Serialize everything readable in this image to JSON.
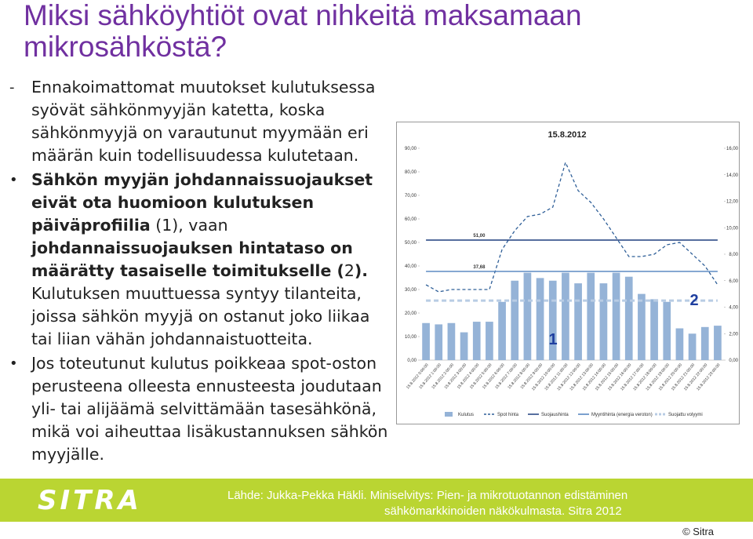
{
  "title": "Miksi sähköyhtiöt ovat nihkeitä maksamaan mikrosähköstä?",
  "bullets": [
    {
      "marker": "-",
      "runs": [
        {
          "text": "Ennakoimattomat muutokset kulutuksessa syövät sähkönmyyjän katetta, koska sähkönmyyjä on varautunut myymään eri määrän kuin todellisuudessa kulutetaan.",
          "bold": false
        }
      ]
    },
    {
      "marker": "•",
      "runs": [
        {
          "text": "Sähkön myyjän johdannaissuojaukset eivät ota huomioon kulutuksen päiväprofiilia",
          "bold": true
        },
        {
          "text": " (1), vaan ",
          "bold": false
        },
        {
          "text": "johdannaissuojauksen hintataso on määrätty tasaiselle toimitukselle (",
          "bold": true
        },
        {
          "text": "2",
          "bold": false
        },
        {
          "text": ").",
          "bold": true
        },
        {
          "text": " Kulutuksen muuttuessa syntyy tilanteita, joissa sähkön myyjä on ostanut joko liikaa tai liian vähän johdannaistuotteita.",
          "bold": false
        }
      ]
    },
    {
      "marker": "•",
      "runs": [
        {
          "text": "Jos toteutunut kulutus poikkeaa spot-oston perusteena olleesta ennusteesta joudutaan yli- tai alijäämä selvittämään tasesähkönä, mikä voi aiheuttaa lisäkustannuksen sähkön myyjälle.",
          "bold": false
        }
      ]
    }
  ],
  "footer": {
    "logo": "SITRA",
    "source": [
      "Lähde: Jukka-Pekka Häkli. Miniselvitys: Pien- ja mikrotuotannon edistäminen",
      "sähkömarkkinoiden näkökulmasta. Sitra 2012"
    ],
    "copyright": "© Sitra"
  },
  "chart_data": {
    "type": "bar-line",
    "title": "15.8.2012",
    "categories": [
      "15.8.2012 0:00:00",
      "15.8.2012 1:00:00",
      "15.8.2012 2:00:00",
      "15.8.2012 3:00:00",
      "15.8.2012 4:00:00",
      "15.8.2012 5:00:00",
      "15.8.2012 6:00:00",
      "15.8.2012 7:00:00",
      "15.8.2012 8:00:00",
      "15.8.2012 9:00:00",
      "15.8.2012 10:00:00",
      "15.8.2012 11:00:00",
      "15.8.2012 12:00:00",
      "15.8.2012 13:00:00",
      "15.8.2012 14:00:00",
      "15.8.2012 15:00:00",
      "15.8.2012 16:00:00",
      "15.8.2012 17:00:00",
      "15.8.2012 18:00:00",
      "15.8.2012 19:00:00",
      "15.8.2012 20:00:00",
      "15.8.2012 21:00:00",
      "15.8.2012 22:00:00",
      "15.8.2012 23:00:00"
    ],
    "series": [
      {
        "name": "Kulutus",
        "kind": "bar",
        "axis": "y2",
        "color": "#95b3d7",
        "values": [
          2.8,
          2.7,
          2.8,
          2.1,
          2.9,
          2.9,
          4.4,
          6.0,
          6.6,
          6.2,
          6.0,
          6.6,
          5.8,
          6.6,
          5.8,
          6.6,
          6.3,
          5.0,
          4.6,
          4.4,
          2.4,
          2.0,
          2.5,
          2.6
        ]
      },
      {
        "name": "Spot hinta",
        "kind": "dash",
        "color": "#2f5f98",
        "values": [
          32,
          29,
          30,
          30,
          30,
          30,
          47,
          55,
          61,
          62,
          65,
          84,
          72,
          67,
          60,
          52,
          44,
          44,
          45,
          49,
          50,
          45,
          40,
          32
        ]
      },
      {
        "name": "Suojaushinta",
        "kind": "line",
        "color": "#1f3f7f",
        "values": [
          51,
          51,
          51,
          51,
          51,
          51,
          51,
          51,
          51,
          51,
          51,
          51,
          51,
          51,
          51,
          51,
          51,
          51,
          51,
          51,
          51,
          51,
          51,
          51
        ],
        "label_values": [
          51
        ],
        "value_labels": [
          "51,00"
        ]
      },
      {
        "name": "Myyntihinta (energia veroton)",
        "kind": "line",
        "color": "#4f81bd",
        "values": [
          37.68,
          37.68,
          37.68,
          37.68,
          37.68,
          37.68,
          37.68,
          37.68,
          37.68,
          37.68,
          37.68,
          37.68,
          37.68,
          37.68,
          37.68,
          37.68,
          37.68,
          37.68,
          37.68,
          37.68,
          37.68,
          37.68,
          37.68,
          37.68
        ],
        "label_values": [
          37.68
        ],
        "value_labels": [
          "37,68"
        ]
      },
      {
        "name": "Suojattu volyymi",
        "kind": "thickdash",
        "axis": "y2",
        "color": "#b8cce4",
        "values": [
          4.5,
          4.5,
          4.5,
          4.5,
          4.5,
          4.5,
          4.5,
          4.5,
          4.5,
          4.5,
          4.5,
          4.5,
          4.5,
          4.5,
          4.5,
          4.5,
          4.5,
          4.5,
          4.5,
          4.5,
          4.5,
          4.5,
          4.5,
          4.5
        ]
      }
    ],
    "annotations": [
      "1",
      "2"
    ],
    "ylim": [
      0,
      90
    ],
    "yticks": [
      {
        "value": 0,
        "label": "0,00"
      },
      {
        "value": 10,
        "label": "10,00"
      },
      {
        "value": 20,
        "label": "20,00"
      },
      {
        "value": 30,
        "label": "30,00"
      },
      {
        "value": 40,
        "label": "40,00"
      },
      {
        "value": 50,
        "label": "50,00"
      },
      {
        "value": 60,
        "label": "60,00"
      },
      {
        "value": 70,
        "label": "70,00"
      },
      {
        "value": 80,
        "label": "80,00"
      },
      {
        "value": 90,
        "label": "90,00"
      }
    ],
    "y2lim": [
      0,
      16
    ],
    "y2ticks": [
      {
        "value": 0,
        "label": "0,00"
      },
      {
        "value": 2,
        "label": "2,00"
      },
      {
        "value": 4,
        "label": "4,00"
      },
      {
        "value": 6,
        "label": "6,00"
      },
      {
        "value": 8,
        "label": "8,00"
      },
      {
        "value": 10,
        "label": "10,00"
      },
      {
        "value": 12,
        "label": "12,00"
      },
      {
        "value": 14,
        "label": "14,00"
      },
      {
        "value": 16,
        "label": "16,00"
      }
    ]
  }
}
